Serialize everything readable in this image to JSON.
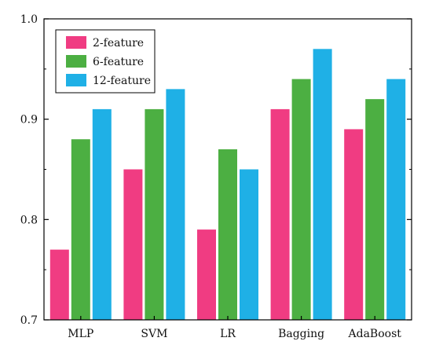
{
  "chart_data": {
    "type": "bar",
    "categories": [
      "MLP",
      "SVM",
      "LR",
      "Bagging",
      "AdaBoost"
    ],
    "series": [
      {
        "name": "2-feature",
        "color": "#f03c82",
        "values": [
          0.77,
          0.85,
          0.79,
          0.91,
          0.89
        ]
      },
      {
        "name": "6-feature",
        "color": "#4caf42",
        "values": [
          0.88,
          0.91,
          0.87,
          0.94,
          0.92
        ]
      },
      {
        "name": "12-feature",
        "color": "#1fb0e6",
        "values": [
          0.91,
          0.93,
          0.85,
          0.97,
          0.94
        ]
      }
    ],
    "ylim": [
      0.7,
      1.0
    ],
    "yticks": [
      "0.7",
      "0.8",
      "0.9",
      "1.0"
    ],
    "ytick_values": [
      0.7,
      0.8,
      0.9,
      1.0
    ],
    "legend_position": "top-left",
    "grid": false
  }
}
